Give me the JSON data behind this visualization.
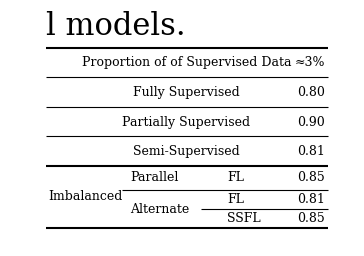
{
  "title_text": "l models.",
  "header_label": "Proportion of of Supervised Data",
  "header_value": "≈3%",
  "rows": [
    {
      "col0": "",
      "col1": "Fully Supervised",
      "col2": "",
      "col3": "0.80"
    },
    {
      "col0": "",
      "col1": "Partially Supervised",
      "col2": "",
      "col3": "0.90"
    },
    {
      "col0": "",
      "col1": "Semi-Supervised",
      "col2": "",
      "col3": "0.81"
    },
    {
      "col0": "Imbalanced",
      "col1": "Parallel",
      "col2": "FL",
      "col3": "0.85"
    },
    {
      "col0": "",
      "col1": "Alternate",
      "col2": "FL",
      "col3": "0.81"
    },
    {
      "col0": "",
      "col1": "",
      "col2": "SSFL",
      "col3": "0.85"
    }
  ],
  "bg_color": "#ffffff",
  "text_color": "#000000",
  "font_size": 9,
  "title_font_size": 22,
  "lw_thick": 1.5,
  "lw_thin": 0.8
}
